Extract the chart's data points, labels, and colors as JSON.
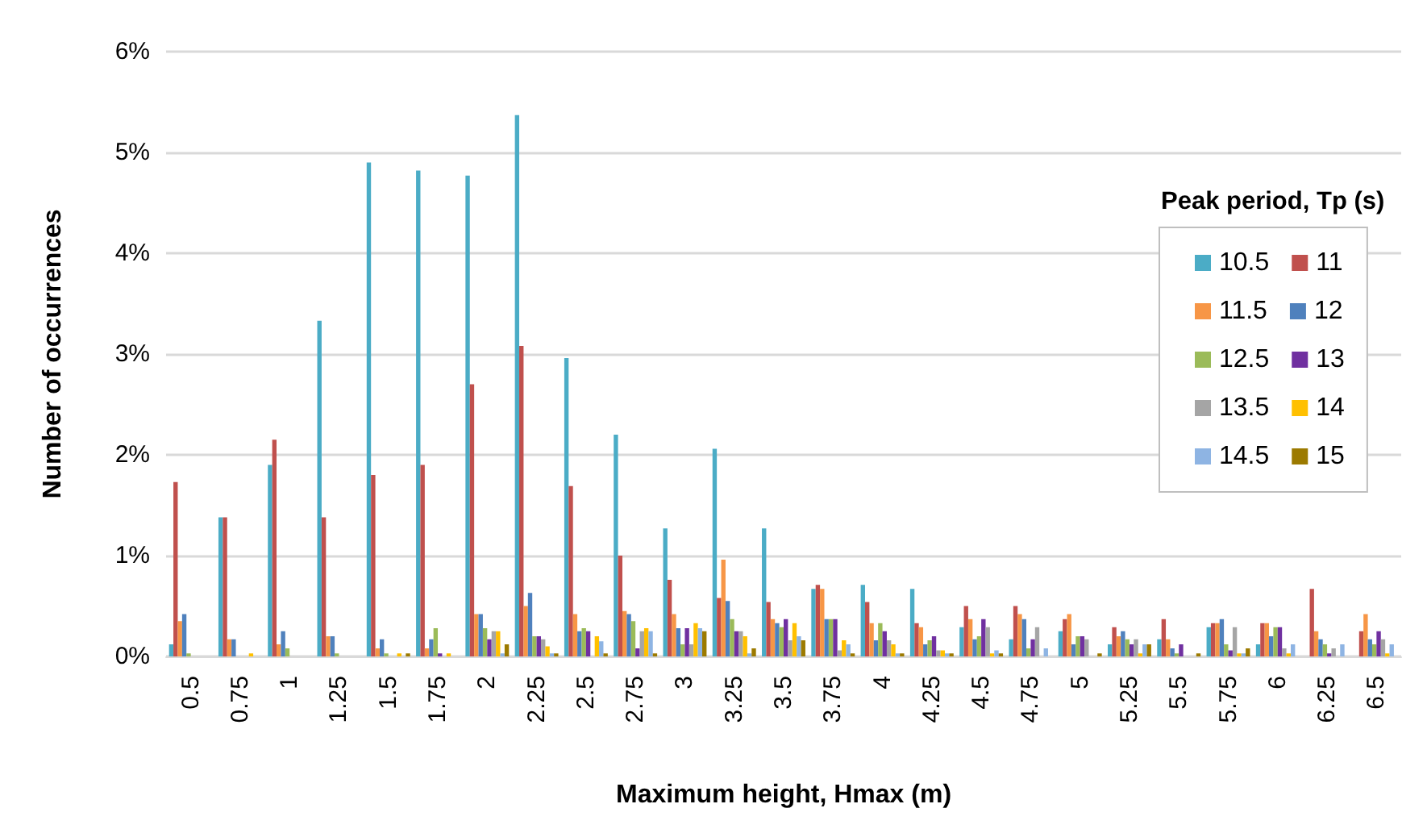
{
  "chart_data": {
    "type": "bar",
    "xlabel": "Maximum height, Hmax (m)",
    "ylabel": "Number of occurrences",
    "legend_title": "Peak period, Tp (s)",
    "categories": [
      "0.5",
      "0.75",
      "1",
      "1.25",
      "1.5",
      "1.75",
      "2",
      "2.25",
      "2.5",
      "2.75",
      "3",
      "3.25",
      "3.5",
      "3.75",
      "4",
      "4.25",
      "4.5",
      "4.75",
      "5",
      "5.25",
      "5.5",
      "5.75",
      "6",
      "6.25",
      "6.5"
    ],
    "ylim": [
      0,
      6
    ],
    "yticks": [
      {
        "value": 0,
        "label": "0%"
      },
      {
        "value": 1,
        "label": "1%"
      },
      {
        "value": 2,
        "label": "2%"
      },
      {
        "value": 3,
        "label": "3%"
      },
      {
        "value": 4,
        "label": "4%"
      },
      {
        "value": 5,
        "label": "5%"
      },
      {
        "value": 6,
        "label": "6%"
      }
    ],
    "grid": "y",
    "legend": "right",
    "series": [
      {
        "name": "10.5",
        "color": "#4bacc6",
        "values": [
          0.12,
          1.38,
          1.9,
          3.33,
          4.9,
          4.82,
          4.77,
          5.37,
          2.96,
          2.2,
          1.27,
          2.06,
          1.27,
          0.67,
          0.71,
          0.67,
          0.29,
          0.17,
          0.25,
          0.12,
          0.17,
          0.29,
          0.12,
          0,
          0
        ]
      },
      {
        "name": "11",
        "color": "#c0504d",
        "values": [
          1.73,
          1.38,
          2.15,
          1.38,
          1.8,
          1.9,
          2.7,
          3.08,
          1.69,
          1.0,
          0.76,
          0.58,
          0.54,
          0.71,
          0.54,
          0.33,
          0.5,
          0.5,
          0.37,
          0.29,
          0.37,
          0.33,
          0.33,
          0.67,
          0.25
        ]
      },
      {
        "name": "11.5",
        "color": "#f79646",
        "values": [
          0.35,
          0.17,
          0.12,
          0.2,
          0.08,
          0.08,
          0.42,
          0.5,
          0.42,
          0.45,
          0.42,
          0.96,
          0.37,
          0.67,
          0.33,
          0.29,
          0.37,
          0.42,
          0.42,
          0.2,
          0.17,
          0.33,
          0.33,
          0.25,
          0.42
        ]
      },
      {
        "name": "12",
        "color": "#4f81bd",
        "values": [
          0.42,
          0.17,
          0.25,
          0.2,
          0.17,
          0.17,
          0.42,
          0.63,
          0.25,
          0.42,
          0.28,
          0.55,
          0.33,
          0.37,
          0.16,
          0.12,
          0.17,
          0.37,
          0.12,
          0.25,
          0.08,
          0.37,
          0.2,
          0.17,
          0.17
        ]
      },
      {
        "name": "12.5",
        "color": "#9bbb59",
        "values": [
          0.03,
          0,
          0.08,
          0.03,
          0.03,
          0.28,
          0.28,
          0.2,
          0.28,
          0.35,
          0.12,
          0.37,
          0.29,
          0.37,
          0.33,
          0.16,
          0.2,
          0.08,
          0.2,
          0.17,
          0.03,
          0.12,
          0.29,
          0.12,
          0.12
        ]
      },
      {
        "name": "13",
        "color": "#7030a0",
        "values": [
          0,
          0,
          0,
          0,
          0,
          0.03,
          0.17,
          0.2,
          0.25,
          0.08,
          0.28,
          0.25,
          0.37,
          0.37,
          0.25,
          0.2,
          0.37,
          0.17,
          0.2,
          0.12,
          0.12,
          0.06,
          0.29,
          0.03,
          0.25
        ]
      },
      {
        "name": "13.5",
        "color": "#a5a5a5",
        "values": [
          0,
          null,
          0,
          0,
          0,
          null,
          0.25,
          0.17,
          null,
          0.25,
          0.12,
          0.25,
          0.16,
          0.06,
          0.16,
          0.06,
          0.29,
          0.29,
          0.17,
          0.17,
          null,
          0.29,
          0.08,
          0.08,
          0.17
        ]
      },
      {
        "name": "14",
        "color": "#ffc000",
        "values": [
          0,
          0.03,
          0,
          0,
          0.03,
          0.03,
          0.25,
          0.1,
          0.2,
          0.28,
          0.33,
          0.2,
          0.33,
          0.16,
          0.12,
          0.06,
          0.03,
          0,
          0,
          0.03,
          0,
          0.03,
          0.03,
          0,
          0.03
        ]
      },
      {
        "name": "14.5",
        "color": "#8eb4e3",
        "values": [
          0,
          0,
          0,
          0,
          0,
          0,
          0.03,
          0.03,
          0.15,
          0.25,
          0.28,
          0.03,
          0.2,
          0.12,
          0.03,
          0.03,
          0.06,
          0.08,
          0,
          0.12,
          0,
          0.03,
          0.12,
          0.12,
          0.12
        ]
      },
      {
        "name": "15",
        "color": "#9c7a00",
        "values": [
          0,
          0,
          0,
          0,
          0.03,
          0,
          0.12,
          0.03,
          0.03,
          0.03,
          0.25,
          0.08,
          0.16,
          0.03,
          0.03,
          0.03,
          0.03,
          0,
          0.03,
          0.12,
          0.03,
          0.08,
          0,
          0,
          0
        ]
      }
    ]
  }
}
